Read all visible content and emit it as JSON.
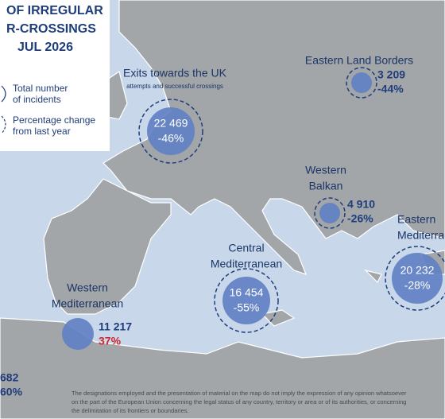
{
  "title": {
    "lines": [
      "OF IRREGULAR",
      "R-CROSSINGS",
      "JUL 2026"
    ]
  },
  "legend": {
    "total": [
      "Total number",
      "of incidents"
    ],
    "percentage": [
      "Percentage change",
      "from last year"
    ]
  },
  "routes": [
    {
      "name": [
        "Exits towards the UK"
      ],
      "note": "attempts and successful crossings",
      "total": "22 469",
      "change": "-46%"
    },
    {
      "name": [
        "Eastern Land Borders"
      ],
      "total": "3 209",
      "change": "-44%"
    },
    {
      "name": [
        "Western",
        "Balkan"
      ],
      "total": "4 910",
      "change": "-26%"
    },
    {
      "name": [
        "Eastern",
        "Mediterranean"
      ],
      "total": "20 232",
      "change": "-28%"
    },
    {
      "name": [
        "Central",
        "Mediterranean"
      ],
      "total": "16 454",
      "change": "-55%"
    },
    {
      "name": [
        "Western",
        "Mediterranean"
      ],
      "total": "11 217",
      "change": "37%"
    },
    {
      "total": "682",
      "change": "60%"
    }
  ],
  "footer": [
    "The designations employed and the presentation of material on the map do not imply the expression of any opinion whatsoever",
    "on the part of the European Union concerning the legal status of any country, territory or area or of its authorities, or concerning",
    "the delimitation of its frontiers or boundaries."
  ]
}
